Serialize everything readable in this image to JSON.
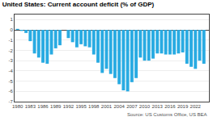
{
  "chart_data": {
    "type": "bar",
    "title": "United States: Current account deficit (% of GDP)",
    "annotations": [
      "Source: US Customs Office, US BEA"
    ],
    "x": [
      1980,
      1981,
      1982,
      1983,
      1984,
      1985,
      1986,
      1987,
      1988,
      1989,
      1990,
      1991,
      1992,
      1993,
      1994,
      1995,
      1996,
      1997,
      1998,
      1999,
      2000,
      2001,
      2002,
      2003,
      2004,
      2005,
      2006,
      2007,
      2008,
      2009,
      2010,
      2011,
      2012,
      2013,
      2014,
      2015,
      2016,
      2017,
      2018,
      2019,
      2020,
      2021,
      2022,
      2023,
      2024
    ],
    "values": [
      0.1,
      -0.1,
      -0.3,
      -1.1,
      -2.3,
      -2.7,
      -3.2,
      -3.3,
      -2.4,
      -1.8,
      -1.5,
      0.0,
      -0.8,
      -1.2,
      -1.7,
      -1.4,
      -1.6,
      -1.7,
      -2.4,
      -3.2,
      -4.2,
      -3.8,
      -4.3,
      -4.7,
      -5.3,
      -5.9,
      -6.0,
      -5.1,
      -4.7,
      -2.7,
      -3.0,
      -3.0,
      -2.8,
      -2.3,
      -2.3,
      -2.4,
      -2.4,
      -2.4,
      -2.3,
      -2.2,
      -3.3,
      -3.6,
      -3.8,
      -3.0,
      -3.3
    ],
    "color": "#29ABE2",
    "xlim": [
      1979.3,
      2025.2
    ],
    "xticks": [
      1980,
      1983,
      1986,
      1989,
      1992,
      1995,
      1998,
      2001,
      2004,
      2007,
      2010,
      2013,
      2016,
      2019,
      2022
    ],
    "ylim": [
      -7,
      1.5
    ],
    "yticks": [
      1,
      0,
      -1,
      -2,
      -3,
      -4,
      -5,
      -6,
      -7
    ],
    "grid": true
  }
}
